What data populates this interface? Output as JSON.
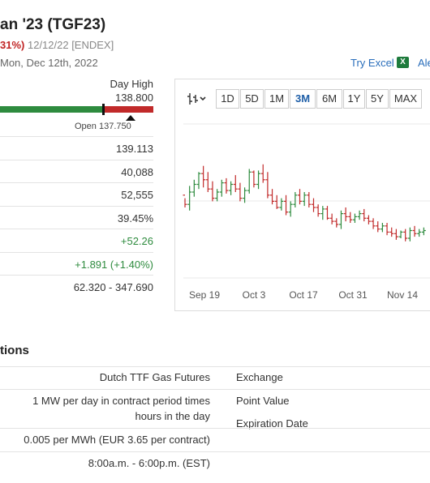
{
  "header": {
    "title": "an '23 (TGF23)",
    "change_pct": "31%)",
    "date_exchange": "12/12/22 [ENDEX]",
    "date_line": "Mon, Dec 12th, 2022",
    "excel_link": "Try Excel",
    "excel_icon": "X",
    "alerts_link": "Ale"
  },
  "day_range": {
    "day_high_label": "Day High",
    "day_high_value": "138.800",
    "open_label": "Open 137.750",
    "colors": {
      "up": "#2e8b3e",
      "down": "#c12a2a"
    }
  },
  "stats": [
    {
      "value": "139.113",
      "tone": "neutral"
    },
    {
      "value": "40,088",
      "tone": "neutral"
    },
    {
      "value": "52,555",
      "tone": "neutral"
    },
    {
      "value": "39.45%",
      "tone": "neutral"
    },
    {
      "value": "+52.26",
      "tone": "positive"
    },
    {
      "value": "+1.891 (+1.40%)",
      "tone": "positive"
    },
    {
      "value": "62.320 - 347.690",
      "tone": "neutral"
    }
  ],
  "chart_toolbar": {
    "chart_type_icon": "ohlc-bars-icon",
    "timeframes": [
      "1D",
      "5D",
      "1M",
      "3M",
      "6M",
      "1Y",
      "5Y",
      "MAX"
    ],
    "active": "3M"
  },
  "chart_data": {
    "type": "ohlc",
    "x_tick_labels": [
      "Sep 19",
      "Oct 3",
      "Oct 17",
      "Oct 31",
      "Nov 14"
    ],
    "grid": true,
    "colors": {
      "up": "#2e8b3e",
      "down": "#c12a2a"
    },
    "bars": [
      {
        "o": 0.62,
        "h": 0.64,
        "l": 0.7,
        "c": 0.68
      },
      {
        "o": 0.68,
        "h": 0.56,
        "l": 0.72,
        "c": 0.6
      },
      {
        "o": 0.6,
        "h": 0.52,
        "l": 0.63,
        "c": 0.55
      },
      {
        "o": 0.55,
        "h": 0.47,
        "l": 0.58,
        "c": 0.48
      },
      {
        "o": 0.48,
        "h": 0.43,
        "l": 0.57,
        "c": 0.52
      },
      {
        "o": 0.52,
        "h": 0.47,
        "l": 0.6,
        "c": 0.58
      },
      {
        "o": 0.58,
        "h": 0.53,
        "l": 0.66,
        "c": 0.64
      },
      {
        "o": 0.64,
        "h": 0.58,
        "l": 0.66,
        "c": 0.6
      },
      {
        "o": 0.6,
        "h": 0.52,
        "l": 0.63,
        "c": 0.54
      },
      {
        "o": 0.54,
        "h": 0.51,
        "l": 0.61,
        "c": 0.59
      },
      {
        "o": 0.59,
        "h": 0.53,
        "l": 0.62,
        "c": 0.55
      },
      {
        "o": 0.55,
        "h": 0.49,
        "l": 0.6,
        "c": 0.58
      },
      {
        "o": 0.58,
        "h": 0.54,
        "l": 0.66,
        "c": 0.64
      },
      {
        "o": 0.64,
        "h": 0.57,
        "l": 0.67,
        "c": 0.59
      },
      {
        "o": 0.59,
        "h": 0.45,
        "l": 0.61,
        "c": 0.47
      },
      {
        "o": 0.47,
        "h": 0.46,
        "l": 0.57,
        "c": 0.55
      },
      {
        "o": 0.55,
        "h": 0.46,
        "l": 0.58,
        "c": 0.48
      },
      {
        "o": 0.48,
        "h": 0.42,
        "l": 0.54,
        "c": 0.52
      },
      {
        "o": 0.52,
        "h": 0.47,
        "l": 0.64,
        "c": 0.62
      },
      {
        "o": 0.62,
        "h": 0.58,
        "l": 0.68,
        "c": 0.66
      },
      {
        "o": 0.66,
        "h": 0.62,
        "l": 0.71,
        "c": 0.7
      },
      {
        "o": 0.7,
        "h": 0.64,
        "l": 0.72,
        "c": 0.66
      },
      {
        "o": 0.66,
        "h": 0.62,
        "l": 0.75,
        "c": 0.73
      },
      {
        "o": 0.73,
        "h": 0.66,
        "l": 0.76,
        "c": 0.68
      },
      {
        "o": 0.68,
        "h": 0.6,
        "l": 0.7,
        "c": 0.62
      },
      {
        "o": 0.62,
        "h": 0.58,
        "l": 0.68,
        "c": 0.66
      },
      {
        "o": 0.66,
        "h": 0.6,
        "l": 0.69,
        "c": 0.62
      },
      {
        "o": 0.62,
        "h": 0.6,
        "l": 0.7,
        "c": 0.68
      },
      {
        "o": 0.68,
        "h": 0.64,
        "l": 0.73,
        "c": 0.7
      },
      {
        "o": 0.7,
        "h": 0.68,
        "l": 0.76,
        "c": 0.74
      },
      {
        "o": 0.74,
        "h": 0.69,
        "l": 0.78,
        "c": 0.71
      },
      {
        "o": 0.71,
        "h": 0.69,
        "l": 0.78,
        "c": 0.77
      },
      {
        "o": 0.77,
        "h": 0.74,
        "l": 0.81,
        "c": 0.79
      },
      {
        "o": 0.79,
        "h": 0.77,
        "l": 0.83,
        "c": 0.81
      },
      {
        "o": 0.81,
        "h": 0.72,
        "l": 0.84,
        "c": 0.74
      },
      {
        "o": 0.74,
        "h": 0.7,
        "l": 0.79,
        "c": 0.76
      },
      {
        "o": 0.76,
        "h": 0.73,
        "l": 0.8,
        "c": 0.78
      },
      {
        "o": 0.78,
        "h": 0.74,
        "l": 0.8,
        "c": 0.76
      },
      {
        "o": 0.76,
        "h": 0.72,
        "l": 0.78,
        "c": 0.74
      },
      {
        "o": 0.74,
        "h": 0.71,
        "l": 0.79,
        "c": 0.77
      },
      {
        "o": 0.77,
        "h": 0.75,
        "l": 0.81,
        "c": 0.79
      },
      {
        "o": 0.79,
        "h": 0.77,
        "l": 0.84,
        "c": 0.82
      },
      {
        "o": 0.82,
        "h": 0.79,
        "l": 0.86,
        "c": 0.84
      },
      {
        "o": 0.84,
        "h": 0.8,
        "l": 0.86,
        "c": 0.82
      },
      {
        "o": 0.82,
        "h": 0.8,
        "l": 0.88,
        "c": 0.86
      },
      {
        "o": 0.86,
        "h": 0.83,
        "l": 0.89,
        "c": 0.87
      },
      {
        "o": 0.87,
        "h": 0.84,
        "l": 0.91,
        "c": 0.89
      },
      {
        "o": 0.89,
        "h": 0.85,
        "l": 0.9,
        "c": 0.86
      },
      {
        "o": 0.86,
        "h": 0.84,
        "l": 0.92,
        "c": 0.9
      },
      {
        "o": 0.9,
        "h": 0.83,
        "l": 0.92,
        "c": 0.85
      },
      {
        "o": 0.85,
        "h": 0.82,
        "l": 0.89,
        "c": 0.87
      },
      {
        "o": 0.87,
        "h": 0.84,
        "l": 0.89,
        "c": 0.86
      },
      {
        "o": 0.86,
        "h": 0.83,
        "l": 0.88,
        "c": 0.85
      }
    ]
  },
  "specifications": {
    "section_title": "tions",
    "left_values": [
      "Dutch TTF Gas Futures",
      "1 MW per day in contract period times\nhours in the day",
      "0.005 per MWh (EUR 3.65 per contract)",
      "8:00a.m. - 6:00p.m. (EST)"
    ],
    "right_labels": [
      "Exchange",
      "Point Value",
      "Expiration Date"
    ]
  }
}
